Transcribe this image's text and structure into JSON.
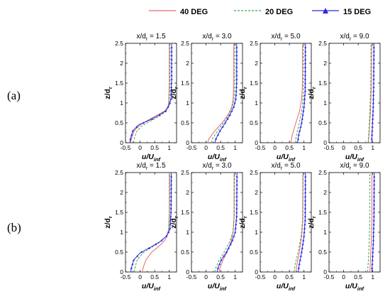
{
  "legend": {
    "entries": [
      {
        "label": "40 DEG",
        "color": "#e8696d",
        "dash": "solid",
        "marker": "none"
      },
      {
        "label": "20 DEG",
        "color": "#3aa94a",
        "dash": "dashed",
        "marker": "none"
      },
      {
        "label": "15 DEG",
        "color": "#2828e0",
        "dash": "solid",
        "marker": "triangle"
      }
    ]
  },
  "rows": [
    {
      "label": "(a)"
    },
    {
      "label": "(b)"
    }
  ],
  "chart_data": [
    {
      "type": "line",
      "panel": "a-1",
      "title": "x/d_r = 1.5",
      "xlabel": "u/U_inf",
      "ylabel": "z/d_r",
      "xlim": [
        -0.5,
        1.25
      ],
      "ylim": [
        0,
        2.5
      ],
      "xticks": [
        "-0.5",
        "0",
        "0.5",
        "1"
      ],
      "yticks": [
        "0",
        "0.5",
        "1",
        "1.5",
        "2",
        "2.5"
      ],
      "series": [
        {
          "name": "40 DEG",
          "x": [
            -0.32,
            -0.3,
            -0.2,
            0.0,
            0.3,
            0.6,
            0.85,
            0.95,
            0.98,
            1.0,
            1.0
          ],
          "y": [
            0.0,
            0.1,
            0.3,
            0.45,
            0.58,
            0.7,
            0.8,
            0.9,
            1.0,
            1.5,
            2.5
          ]
        },
        {
          "name": "20 DEG",
          "x": [
            -0.22,
            -0.2,
            -0.12,
            0.05,
            0.35,
            0.65,
            0.88,
            0.97,
            1.0,
            1.02,
            1.02
          ],
          "y": [
            0.0,
            0.1,
            0.28,
            0.42,
            0.54,
            0.66,
            0.78,
            0.92,
            1.05,
            1.5,
            2.5
          ]
        },
        {
          "name": "15 DEG",
          "x": [
            -0.35,
            -0.33,
            -0.25,
            -0.05,
            0.3,
            0.62,
            0.88,
            1.0,
            1.06,
            1.08,
            1.08
          ],
          "y": [
            0.0,
            0.1,
            0.3,
            0.45,
            0.56,
            0.68,
            0.8,
            0.95,
            1.1,
            1.6,
            2.5
          ]
        }
      ]
    },
    {
      "type": "line",
      "panel": "a-2",
      "title": "x/d_r = 3.0",
      "xlabel": "u/U_inf",
      "ylabel": "z/d_r",
      "xlim": [
        -0.5,
        1.25
      ],
      "ylim": [
        0,
        2.5
      ],
      "xticks": [
        "-0.5",
        "0",
        "0.5",
        "1"
      ],
      "yticks": [
        "0",
        "0.5",
        "1",
        "1.5",
        "2",
        "2.5"
      ],
      "series": [
        {
          "name": "40 DEG",
          "x": [
            0.05,
            0.1,
            0.3,
            0.55,
            0.75,
            0.88,
            0.93,
            0.95,
            0.95
          ],
          "y": [
            0.0,
            0.1,
            0.3,
            0.5,
            0.7,
            0.9,
            1.1,
            1.5,
            2.5
          ]
        },
        {
          "name": "20 DEG",
          "x": [
            0.18,
            0.22,
            0.4,
            0.6,
            0.78,
            0.9,
            0.96,
            0.98,
            0.98
          ],
          "y": [
            0.0,
            0.1,
            0.3,
            0.5,
            0.7,
            0.9,
            1.1,
            1.5,
            2.5
          ]
        },
        {
          "name": "15 DEG",
          "x": [
            0.3,
            0.34,
            0.48,
            0.66,
            0.82,
            0.95,
            1.02,
            1.05,
            1.05
          ],
          "y": [
            0.0,
            0.1,
            0.3,
            0.5,
            0.7,
            0.9,
            1.1,
            1.5,
            2.5
          ]
        }
      ]
    },
    {
      "type": "line",
      "panel": "a-3",
      "title": "x/d_r = 5.0",
      "xlabel": "u/U_inf",
      "ylabel": "z/d_r",
      "xlim": [
        -0.5,
        1.25
      ],
      "ylim": [
        0,
        2.5
      ],
      "xticks": [
        "-0.5",
        "0",
        "0.5",
        "1"
      ],
      "yticks": [
        "0",
        "0.5",
        "1",
        "1.5",
        "2",
        "2.5"
      ],
      "series": [
        {
          "name": "40 DEG",
          "x": [
            0.55,
            0.6,
            0.72,
            0.85,
            0.92,
            0.95,
            0.95
          ],
          "y": [
            0.0,
            0.2,
            0.5,
            0.8,
            1.1,
            1.5,
            2.5
          ]
        },
        {
          "name": "20 DEG",
          "x": [
            0.7,
            0.74,
            0.84,
            0.94,
            0.98,
            0.98
          ],
          "y": [
            0.0,
            0.2,
            0.5,
            0.9,
            1.3,
            2.5
          ]
        },
        {
          "name": "15 DEG",
          "x": [
            0.78,
            0.82,
            0.92,
            1.0,
            1.04,
            1.05
          ],
          "y": [
            0.0,
            0.2,
            0.5,
            0.9,
            1.3,
            2.5
          ]
        }
      ]
    },
    {
      "type": "line",
      "panel": "a-4",
      "title": "x/d_r = 9.0",
      "xlabel": "u/U_inf",
      "ylabel": "z/d_r",
      "xlim": [
        -0.5,
        1.25
      ],
      "ylim": [
        0,
        2.5
      ],
      "xticks": [
        "-0.5",
        "0",
        "0.5",
        "1"
      ],
      "yticks": [
        "0",
        "0.5",
        "1",
        "1.5",
        "2",
        "2.5"
      ],
      "series": [
        {
          "name": "40 DEG",
          "x": [
            0.85,
            0.88,
            0.92,
            0.95,
            0.96
          ],
          "y": [
            0.0,
            0.3,
            0.8,
            1.4,
            2.5
          ]
        },
        {
          "name": "20 DEG",
          "x": [
            0.84,
            0.87,
            0.9,
            0.93,
            0.94
          ],
          "y": [
            0.0,
            0.3,
            0.8,
            1.4,
            2.5
          ]
        },
        {
          "name": "15 DEG",
          "x": [
            0.96,
            0.98,
            1.01,
            1.03,
            1.04
          ],
          "y": [
            0.0,
            0.3,
            0.8,
            1.4,
            2.5
          ]
        }
      ]
    },
    {
      "type": "line",
      "panel": "b-1",
      "title": "x/d_r = 1.5",
      "xlabel": "u/U_inf",
      "ylabel": "z/d_r",
      "xlim": [
        -0.5,
        1.25
      ],
      "ylim": [
        0,
        2.5
      ],
      "xticks": [
        "-0.5",
        "0",
        "0.5",
        "1"
      ],
      "yticks": [
        "0",
        "0.5",
        "1",
        "1.5",
        "2",
        "2.5"
      ],
      "series": [
        {
          "name": "40 DEG",
          "x": [
            0.08,
            0.1,
            0.2,
            0.4,
            0.65,
            0.85,
            0.95,
            0.98,
            1.0,
            1.0
          ],
          "y": [
            0.0,
            0.1,
            0.3,
            0.5,
            0.65,
            0.8,
            0.95,
            1.1,
            1.5,
            2.5
          ]
        },
        {
          "name": "20 DEG",
          "x": [
            -0.2,
            -0.18,
            -0.1,
            0.1,
            0.4,
            0.7,
            0.9,
            0.98,
            1.01,
            1.02
          ],
          "y": [
            0.0,
            0.1,
            0.3,
            0.48,
            0.62,
            0.76,
            0.9,
            1.05,
            1.5,
            2.5
          ]
        },
        {
          "name": "15 DEG",
          "x": [
            -0.32,
            -0.3,
            -0.22,
            0.0,
            0.35,
            0.68,
            0.9,
            1.02,
            1.06,
            1.07
          ],
          "y": [
            0.0,
            0.1,
            0.3,
            0.48,
            0.62,
            0.76,
            0.9,
            1.06,
            1.5,
            2.5
          ]
        }
      ]
    },
    {
      "type": "line",
      "panel": "b-2",
      "title": "x/d_r = 3.0",
      "xlabel": "u/U_inf",
      "ylabel": "z/d_r",
      "xlim": [
        -0.5,
        1.25
      ],
      "ylim": [
        0,
        2.5
      ],
      "xticks": [
        "-0.5",
        "0",
        "0.5",
        "1"
      ],
      "yticks": [
        "0",
        "0.5",
        "1",
        "1.5",
        "2",
        "2.5"
      ],
      "series": [
        {
          "name": "40 DEG",
          "x": [
            0.45,
            0.48,
            0.58,
            0.72,
            0.85,
            0.93,
            0.96,
            0.96
          ],
          "y": [
            0.0,
            0.1,
            0.3,
            0.5,
            0.75,
            1.0,
            1.4,
            2.5
          ]
        },
        {
          "name": "20 DEG",
          "x": [
            0.3,
            0.33,
            0.45,
            0.62,
            0.8,
            0.92,
            0.97,
            0.98
          ],
          "y": [
            0.0,
            0.1,
            0.3,
            0.5,
            0.75,
            1.0,
            1.4,
            2.5
          ]
        },
        {
          "name": "15 DEG",
          "x": [
            0.38,
            0.41,
            0.52,
            0.7,
            0.88,
            1.0,
            1.05,
            1.06
          ],
          "y": [
            0.0,
            0.1,
            0.3,
            0.5,
            0.75,
            1.0,
            1.4,
            2.5
          ]
        }
      ]
    },
    {
      "type": "line",
      "panel": "b-3",
      "title": "x/d_r = 5.0",
      "xlabel": "u/U_inf",
      "ylabel": "z/d_r",
      "xlim": [
        -0.5,
        1.25
      ],
      "ylim": [
        0,
        2.5
      ],
      "xticks": [
        "-0.5",
        "0",
        "0.5",
        "1"
      ],
      "yticks": [
        "0",
        "0.5",
        "1",
        "1.5",
        "2",
        "2.5"
      ],
      "series": [
        {
          "name": "40 DEG",
          "x": [
            0.72,
            0.76,
            0.84,
            0.92,
            0.96,
            0.97
          ],
          "y": [
            0.0,
            0.2,
            0.5,
            0.9,
            1.3,
            2.5
          ]
        },
        {
          "name": "20 DEG",
          "x": [
            0.66,
            0.7,
            0.8,
            0.9,
            0.95,
            0.96
          ],
          "y": [
            0.0,
            0.2,
            0.5,
            0.9,
            1.3,
            2.5
          ]
        },
        {
          "name": "15 DEG",
          "x": [
            0.8,
            0.84,
            0.92,
            1.0,
            1.04,
            1.05
          ],
          "y": [
            0.0,
            0.2,
            0.5,
            0.9,
            1.3,
            2.5
          ]
        }
      ]
    },
    {
      "type": "line",
      "panel": "b-4",
      "title": "x/d_r = 9.0",
      "xlabel": "u/U_inf",
      "ylabel": "z/d_r",
      "xlim": [
        -0.5,
        1.25
      ],
      "ylim": [
        0,
        2.5
      ],
      "xticks": [
        "-0.5",
        "0",
        "0.5",
        "1"
      ],
      "yticks": [
        "0",
        "0.5",
        "1",
        "1.5",
        "2",
        "2.5"
      ],
      "series": [
        {
          "name": "40 DEG",
          "x": [
            0.9,
            0.92,
            0.95,
            0.97,
            0.97
          ],
          "y": [
            0.0,
            0.3,
            0.8,
            1.4,
            2.5
          ]
        },
        {
          "name": "20 DEG",
          "x": [
            0.82,
            0.85,
            0.88,
            0.9,
            0.9
          ],
          "y": [
            0.0,
            0.3,
            0.8,
            1.4,
            2.5
          ]
        },
        {
          "name": "15 DEG",
          "x": [
            0.97,
            0.99,
            1.02,
            1.04,
            1.05
          ],
          "y": [
            0.0,
            0.3,
            0.8,
            1.4,
            2.5
          ]
        }
      ]
    }
  ]
}
